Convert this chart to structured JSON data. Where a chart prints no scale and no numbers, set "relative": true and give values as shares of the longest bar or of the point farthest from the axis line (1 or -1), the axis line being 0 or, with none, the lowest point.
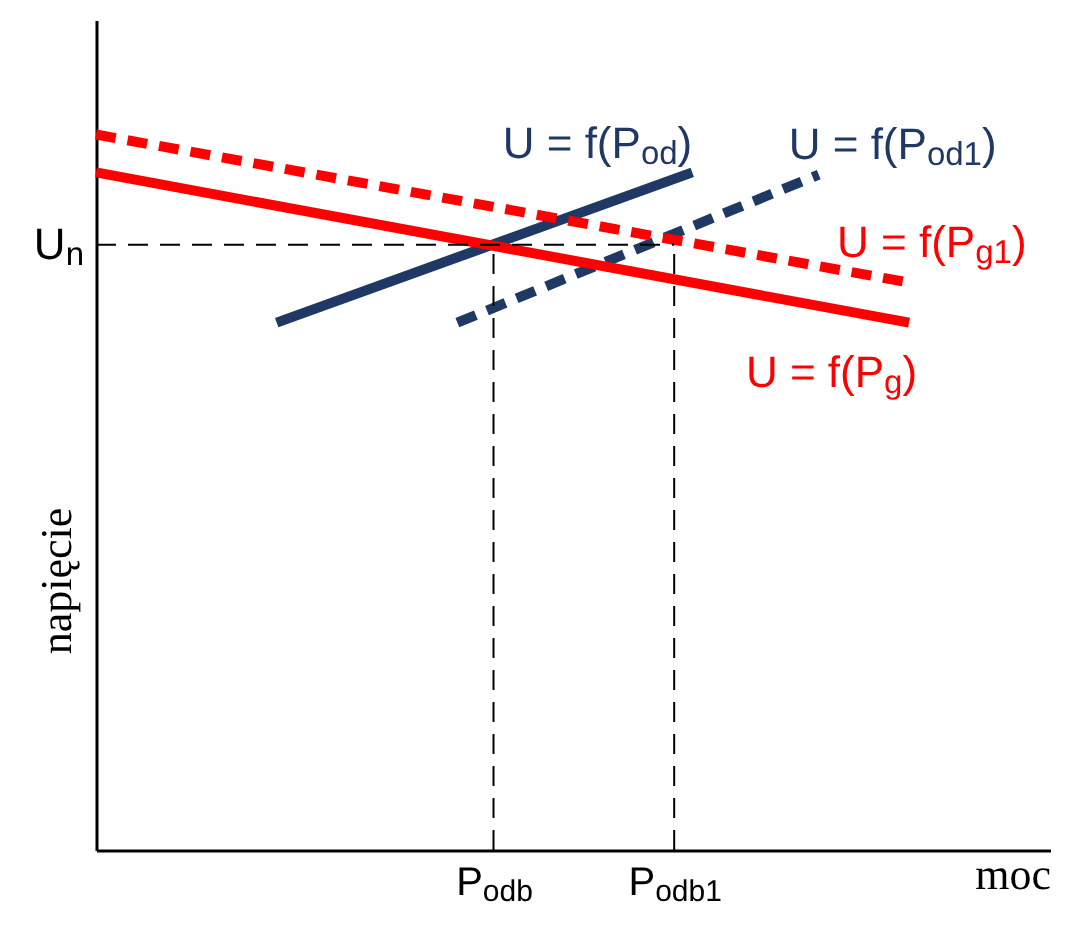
{
  "chart_data": {
    "type": "line",
    "relative": true,
    "xlabel": "moc",
    "ylabel": "napięcie",
    "marker": "none",
    "categories": [
      null,
      null,
      null,
      null,
      null,
      null,
      null,
      null,
      null,
      null,
      null,
      null,
      null,
      null,
      null,
      null,
      null,
      null,
      null,
      null,
      null,
      null,
      "P$_{odb}$",
      null,
      null,
      null,
      null,
      null,
      null,
      null,
      null,
      null,
      "P$_{odb1}$",
      null,
      null,
      null,
      null,
      null,
      null,
      null,
      null,
      null,
      null,
      null,
      null,
      null,
      null,
      null,
      null,
      null,
      null,
      null,
      null
    ],
    "series": [
      {
        "name": "U = f(P$_{od}$)",
        "color": "#1f3864",
        "line_style": "solid",
        "values": [
          null,
          null,
          null,
          null,
          null,
          null,
          null,
          null,
          null,
          null,
          0.737,
          null,
          null,
          null,
          null,
          null,
          null,
          null,
          null,
          null,
          null,
          null,
          null,
          null,
          null,
          null,
          null,
          null,
          null,
          null,
          null,
          null,
          null,
          0.947,
          null,
          null,
          null,
          null,
          null,
          null,
          null,
          null,
          null,
          null,
          null,
          null,
          null,
          null,
          null,
          null,
          null,
          null,
          null
        ]
      },
      {
        "name": "U = f(P$_{od1}$)",
        "color": "#1f3864",
        "line_style": "dashed",
        "values": [
          null,
          null,
          null,
          null,
          null,
          null,
          null,
          null,
          null,
          null,
          null,
          null,
          null,
          null,
          null,
          null,
          null,
          null,
          null,
          null,
          0.737,
          null,
          null,
          null,
          null,
          null,
          null,
          null,
          null,
          null,
          null,
          null,
          null,
          null,
          null,
          null,
          null,
          null,
          null,
          null,
          0.944,
          null,
          null,
          null,
          null,
          null,
          null,
          null,
          null,
          null,
          null,
          null,
          null
        ]
      },
      {
        "name": "U = f(P$_{g1}$)",
        "color": "#ff0000",
        "line_style": "dashed",
        "values": [
          1,
          null,
          null,
          null,
          null,
          null,
          null,
          null,
          null,
          null,
          null,
          null,
          null,
          null,
          null,
          null,
          null,
          null,
          null,
          null,
          null,
          null,
          null,
          null,
          null,
          null,
          null,
          null,
          null,
          null,
          null,
          null,
          null,
          null,
          null,
          null,
          null,
          null,
          null,
          null,
          null,
          null,
          null,
          null,
          null,
          0.793,
          null,
          null,
          null,
          null,
          null,
          null,
          null
        ]
      },
      {
        "name": "U = f(P$_{g}$)",
        "color": "#ff0000",
        "line_style": "solid",
        "values": [
          0.947,
          null,
          null,
          null,
          null,
          null,
          null,
          null,
          null,
          null,
          null,
          null,
          null,
          null,
          null,
          null,
          null,
          null,
          null,
          null,
          null,
          null,
          null,
          null,
          null,
          null,
          null,
          null,
          null,
          null,
          null,
          null,
          null,
          null,
          null,
          null,
          null,
          null,
          null,
          null,
          null,
          null,
          null,
          null,
          null,
          0.737,
          null,
          null,
          null,
          null,
          null,
          null,
          null
        ]
      }
    ],
    "ref_lines": [
      {
        "axis": "y",
        "value": 0.846,
        "label": "U$_{n}$",
        "line_style": "dashed"
      },
      {
        "axis": "x",
        "value": "P$_{odb}$",
        "line_style": "dashed"
      },
      {
        "axis": "x",
        "value": "P$_{odb1}$",
        "line_style": "dashed"
      }
    ]
  }
}
